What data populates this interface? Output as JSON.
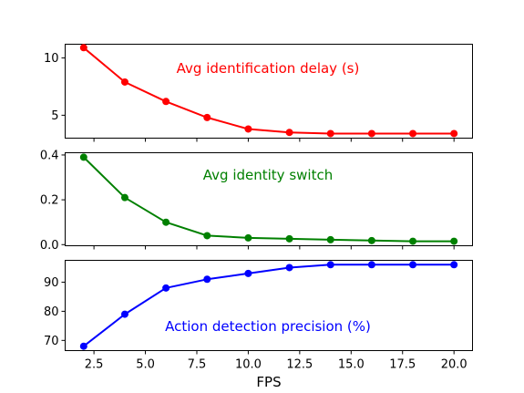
{
  "chart_data": [
    {
      "type": "line",
      "annotation": "Avg identification delay (s)",
      "color": "#ff0000",
      "x": [
        2,
        4,
        6,
        8,
        10,
        12,
        14,
        16,
        18,
        20
      ],
      "values": [
        10.9,
        7.9,
        6.2,
        4.8,
        3.8,
        3.5,
        3.4,
        3.4,
        3.4,
        3.4
      ],
      "ylim": [
        3.0,
        11.2
      ],
      "yticks": [
        5,
        10
      ],
      "ytick_labels": [
        "5",
        "10"
      ]
    },
    {
      "type": "line",
      "annotation": "Avg identity switch",
      "color": "#008000",
      "x": [
        2,
        4,
        6,
        8,
        10,
        12,
        14,
        16,
        18,
        20
      ],
      "values": [
        0.39,
        0.21,
        0.1,
        0.04,
        0.03,
        0.026,
        0.022,
        0.018,
        0.015,
        0.015
      ],
      "ylim": [
        -0.005,
        0.41
      ],
      "yticks": [
        0.0,
        0.2,
        0.4
      ],
      "ytick_labels": [
        "0.0",
        "0.2",
        "0.4"
      ]
    },
    {
      "type": "line",
      "annotation": "Action detection precision (%)",
      "color": "#0000ff",
      "x": [
        2,
        4,
        6,
        8,
        10,
        12,
        14,
        16,
        18,
        20
      ],
      "values": [
        68,
        79,
        88,
        91,
        93,
        95,
        96,
        96,
        96,
        96
      ],
      "ylim": [
        66.5,
        97.5
      ],
      "yticks": [
        70,
        80,
        90
      ],
      "ytick_labels": [
        "70",
        "80",
        "90"
      ]
    }
  ],
  "x_axis": {
    "label": "FPS",
    "xlim": [
      1.1,
      20.9
    ],
    "ticks": [
      2.5,
      5.0,
      7.5,
      10.0,
      12.5,
      15.0,
      17.5,
      20.0
    ],
    "tick_labels": [
      "2.5",
      "5.0",
      "7.5",
      "10.0",
      "12.5",
      "15.0",
      "17.5",
      "20.0"
    ]
  }
}
